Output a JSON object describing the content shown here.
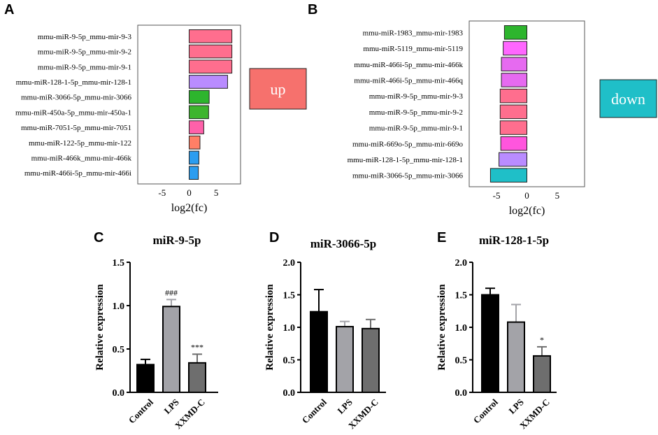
{
  "panels": {
    "A": "A",
    "B": "B",
    "C": "C",
    "D": "D",
    "E": "E"
  },
  "chart_data": [
    {
      "id": "A",
      "type": "bar",
      "orientation": "horizontal",
      "xlabel": "log2(fc)",
      "xlim": [
        -9.5,
        9.5
      ],
      "xticks": [
        -5,
        0,
        5
      ],
      "categories": [
        "mmu-miR-9-5p_mmu-mir-9-3",
        "mmu-miR-9-5p_mmu-mir-9-2",
        "mmu-miR-9-5p_mmu-mir-9-1",
        "mmu-miR-128-1-5p_mmu-mir-128-1",
        "mmu-miR-3066-5p_mmu-mir-3066",
        "mmu-miR-450a-5p_mmu-mir-450a-1",
        "mmu-miR-7051-5p_mmu-mir-7051",
        "mmu-miR-122-5p_mmu-mir-122",
        "mmu-miR-466k_mmu-mir-466k",
        "mmu-miR-466i-5p_mmu-mir-466i"
      ],
      "values": [
        7.9,
        7.9,
        7.9,
        7.1,
        3.7,
        3.6,
        2.7,
        2.0,
        1.8,
        1.7
      ],
      "colors": [
        "#FF6E8E",
        "#FF6E8E",
        "#FF6E8E",
        "#B98CFF",
        "#2DB52D",
        "#3DB52D",
        "#FF61AA",
        "#FF7F66",
        "#2B9DF0",
        "#2B9DF0"
      ],
      "legend": {
        "label": "up",
        "color": "#F6716D"
      }
    },
    {
      "id": "B",
      "type": "bar",
      "orientation": "horizontal",
      "xlabel": "log2(fc)",
      "xlim": [
        -9.5,
        9.5
      ],
      "xticks": [
        -5,
        0,
        5
      ],
      "categories": [
        "mmu-miR-1983_mmu-mir-1983",
        "mmu-miR-5119_mmu-mir-5119",
        "mmu-miR-466i-5p_mmu-mir-466k",
        "mmu-miR-466i-5p_mmu-mir-466q",
        "mmu-miR-9-5p_mmu-mir-9-3",
        "mmu-miR-9-5p_mmu-mir-9-2",
        "mmu-miR-9-5p_mmu-mir-9-1",
        "mmu-miR-669o-5p_mmu-mir-669o",
        "mmu-miR-128-1-5p_mmu-mir-128-1",
        "mmu-miR-3066-5p_mmu-mir-3066"
      ],
      "values": [
        -3.7,
        -3.9,
        -4.2,
        -4.2,
        -4.4,
        -4.4,
        -4.4,
        -4.3,
        -4.6,
        -6.0
      ],
      "colors": [
        "#2DB52D",
        "#FF66FF",
        "#E66AF0",
        "#E66AF0",
        "#FF6E8E",
        "#FF6E8E",
        "#FF6E8E",
        "#FF55DD",
        "#B98CFF",
        "#1FBFC8"
      ],
      "legend": {
        "label": "down",
        "color": "#1FBFC8"
      }
    },
    {
      "id": "C",
      "type": "bar",
      "title": "miR-9-5p",
      "ylabel": "Relative expression",
      "ylim": [
        0,
        1.5
      ],
      "yticks": [
        0.0,
        0.5,
        1.0,
        1.5
      ],
      "categories": [
        "Control",
        "LPS",
        "XXMD-C"
      ],
      "values": [
        0.32,
        0.99,
        0.34
      ],
      "errors": [
        0.06,
        0.08,
        0.1
      ],
      "annotations": [
        "",
        "###",
        "***"
      ],
      "colors": [
        "#000000",
        "#A3A3A8",
        "#6E6E6E"
      ]
    },
    {
      "id": "D",
      "type": "bar",
      "title": "miR-3066-5p",
      "ylabel": "Relative expression",
      "ylim": [
        0,
        2.0
      ],
      "yticks": [
        0.0,
        0.5,
        1.0,
        1.5,
        2.0
      ],
      "categories": [
        "Control",
        "LPS",
        "XXMD-C"
      ],
      "values": [
        1.24,
        1.01,
        0.98
      ],
      "errors": [
        0.34,
        0.08,
        0.14
      ],
      "annotations": [
        "",
        "",
        ""
      ],
      "colors": [
        "#000000",
        "#A3A3A8",
        "#6E6E6E"
      ]
    },
    {
      "id": "E",
      "type": "bar",
      "title": "miR-128-1-5p",
      "ylabel": "Relative expression",
      "ylim": [
        0,
        2.0
      ],
      "yticks": [
        0.0,
        0.5,
        1.0,
        1.5,
        2.0
      ],
      "categories": [
        "Control",
        "LPS",
        "XXMD-C"
      ],
      "values": [
        1.5,
        1.08,
        0.56
      ],
      "errors": [
        0.1,
        0.27,
        0.14
      ],
      "annotations": [
        "",
        "",
        "*"
      ],
      "colors": [
        "#000000",
        "#A3A3A8",
        "#6E6E6E"
      ]
    }
  ]
}
